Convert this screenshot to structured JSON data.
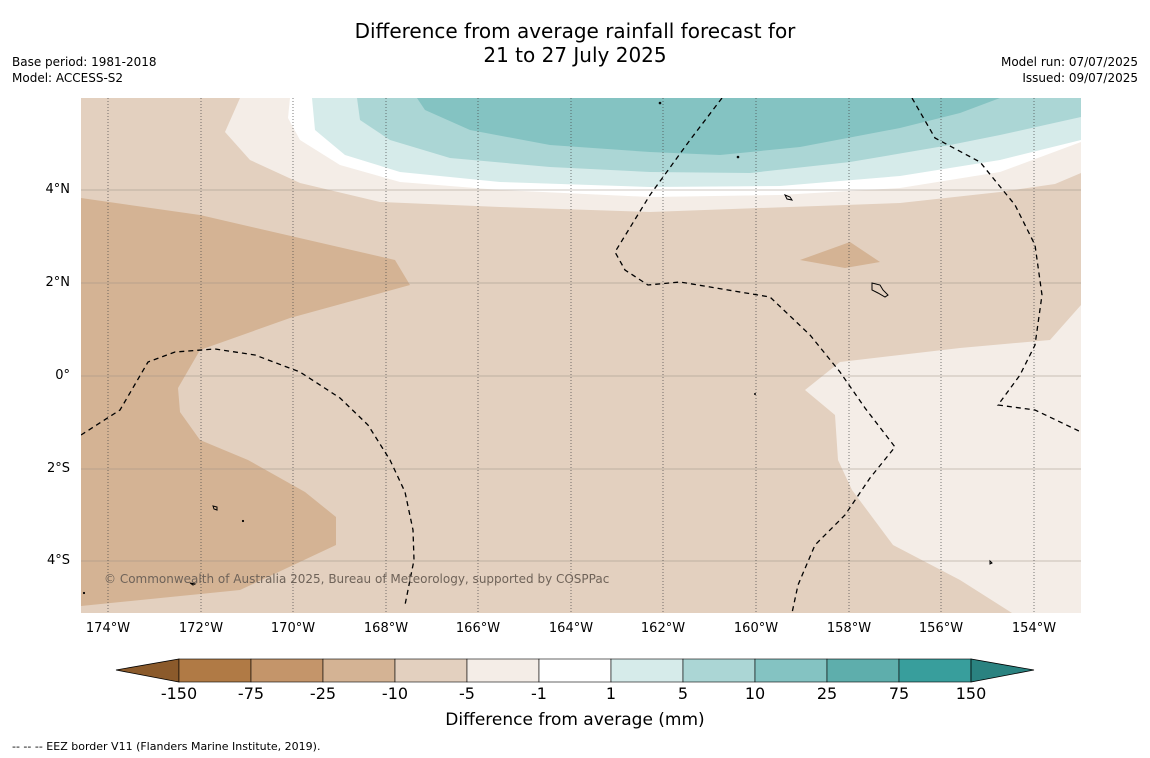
{
  "title_line1": "Difference from average rainfall forecast for",
  "title_line2": "21 to 27 July 2025",
  "meta_left": [
    "Base period: 1981-2018",
    "Model: ACCESS-S2"
  ],
  "meta_right": [
    "Model run: 07/07/2025",
    "Issued: 09/07/2025"
  ],
  "map": {
    "lon_range": [
      -174.6,
      -152.9
    ],
    "lat_range": [
      -5.1,
      5.9
    ],
    "lat_ticks": [
      {
        "value": 4,
        "label": "4°N"
      },
      {
        "value": 2,
        "label": "2°N"
      },
      {
        "value": 0,
        "label": "0°"
      },
      {
        "value": -2,
        "label": "2°S"
      },
      {
        "value": -4,
        "label": "4°S"
      }
    ],
    "lon_ticks": [
      {
        "value": -174,
        "label": "174°W"
      },
      {
        "value": -172,
        "label": "172°W"
      },
      {
        "value": -170,
        "label": "170°W"
      },
      {
        "value": -168,
        "label": "168°W"
      },
      {
        "value": -166,
        "label": "166°W"
      },
      {
        "value": -164,
        "label": "164°W"
      },
      {
        "value": -162,
        "label": "162°W"
      },
      {
        "value": -160,
        "label": "160°W"
      },
      {
        "value": -158,
        "label": "158°W"
      },
      {
        "value": -156,
        "label": "156°W"
      },
      {
        "value": -154,
        "label": "154°W"
      }
    ],
    "copyright": "© Commonwealth of Australia 2025, Bureau of Meteorology, supported by COSPPac"
  },
  "colorbar": {
    "title": "Difference from average (mm)",
    "labels": [
      "-150",
      "-75",
      "-25",
      "-10",
      "-5",
      "-1",
      "1",
      "5",
      "10",
      "25",
      "75",
      "150"
    ],
    "colors": [
      "#b07a45",
      "#c4956a",
      "#d4b394",
      "#e3d0bf",
      "#f4ede7",
      "#ffffff",
      "#d6ebea",
      "#abd6d5",
      "#84c3c2",
      "#5eaeac",
      "#389e9c"
    ],
    "under_color": "#8b5a2b",
    "over_color": "#2a8280"
  },
  "footer": "--  --  -- EEZ border V11 (Flanders Marine Institute, 2019)."
}
